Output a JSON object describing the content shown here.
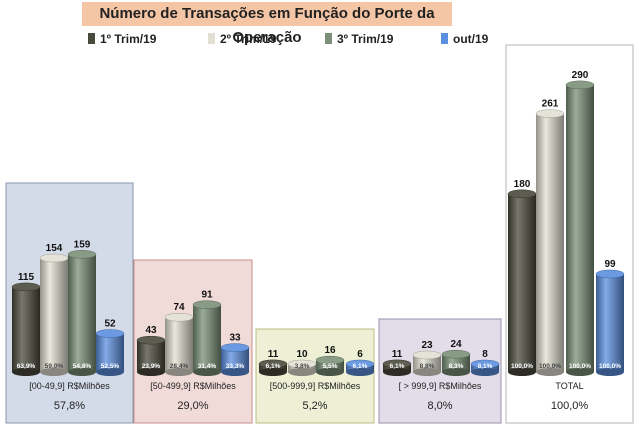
{
  "chart_data": {
    "type": "bar",
    "title": "Número de Transações em Função do Porte da Operação",
    "legend_position": "top",
    "series": [
      {
        "name": "1º Trim/19",
        "color": "#4a4a3c"
      },
      {
        "name": "2º Trim/19",
        "color": "#e2e0d2"
      },
      {
        "name": "3º Trim/19",
        "color": "#7a9077"
      },
      {
        "name": "out/19",
        "color": "#5b8fe0"
      }
    ],
    "groups": [
      {
        "label": "[00-49,9] R$Milhões",
        "share": "57,8%",
        "values": [
          115,
          154,
          159,
          52
        ],
        "value_labels": [
          "115",
          "154",
          "159",
          "52"
        ],
        "percents": [
          "63,9%",
          "59,0%",
          "54,8%",
          "52,5%"
        ],
        "box_fill": "#d3dbe8",
        "box_border": "#8894ad"
      },
      {
        "label": "[50-499,9] R$Milhões",
        "share": "29,0%",
        "values": [
          43,
          74,
          91,
          33
        ],
        "value_labels": [
          "43",
          "74",
          "91",
          "33"
        ],
        "percents": [
          "23,9%",
          "28,4%",
          "31,4%",
          "33,3%"
        ],
        "box_fill": "#f1dbd9",
        "box_border": "#c98c88"
      },
      {
        "label": "[500-999,9] R$Milhões",
        "share": "5,2%",
        "values": [
          11,
          10,
          16,
          6
        ],
        "value_labels": [
          "11",
          "10",
          "16",
          "6"
        ],
        "percents": [
          "6,1%",
          "3,8%",
          "5,5%",
          "6,1%"
        ],
        "box_fill": "#eef0d6",
        "box_border": "#b8bd85"
      },
      {
        "label": "[ > 999,9] R$Milhões",
        "share": "8,0%",
        "values": [
          11,
          23,
          24,
          8
        ],
        "value_labels": [
          "11",
          "23",
          "24",
          "8"
        ],
        "percents": [
          "6,1%",
          "8,8%",
          "8,3%",
          "8,1%"
        ],
        "box_fill": "#e2dde9",
        "box_border": "#9b91ad"
      },
      {
        "label": "TOTAL",
        "share": "100,0%",
        "values": [
          180,
          261,
          290,
          99
        ],
        "value_labels": [
          "180",
          "261",
          "290",
          "99"
        ],
        "percents": [
          "100,0%",
          "100,0%",
          "100,0%",
          "100,0%"
        ],
        "box_fill": "#ffffff",
        "box_border": "#b5b5b5"
      }
    ]
  }
}
